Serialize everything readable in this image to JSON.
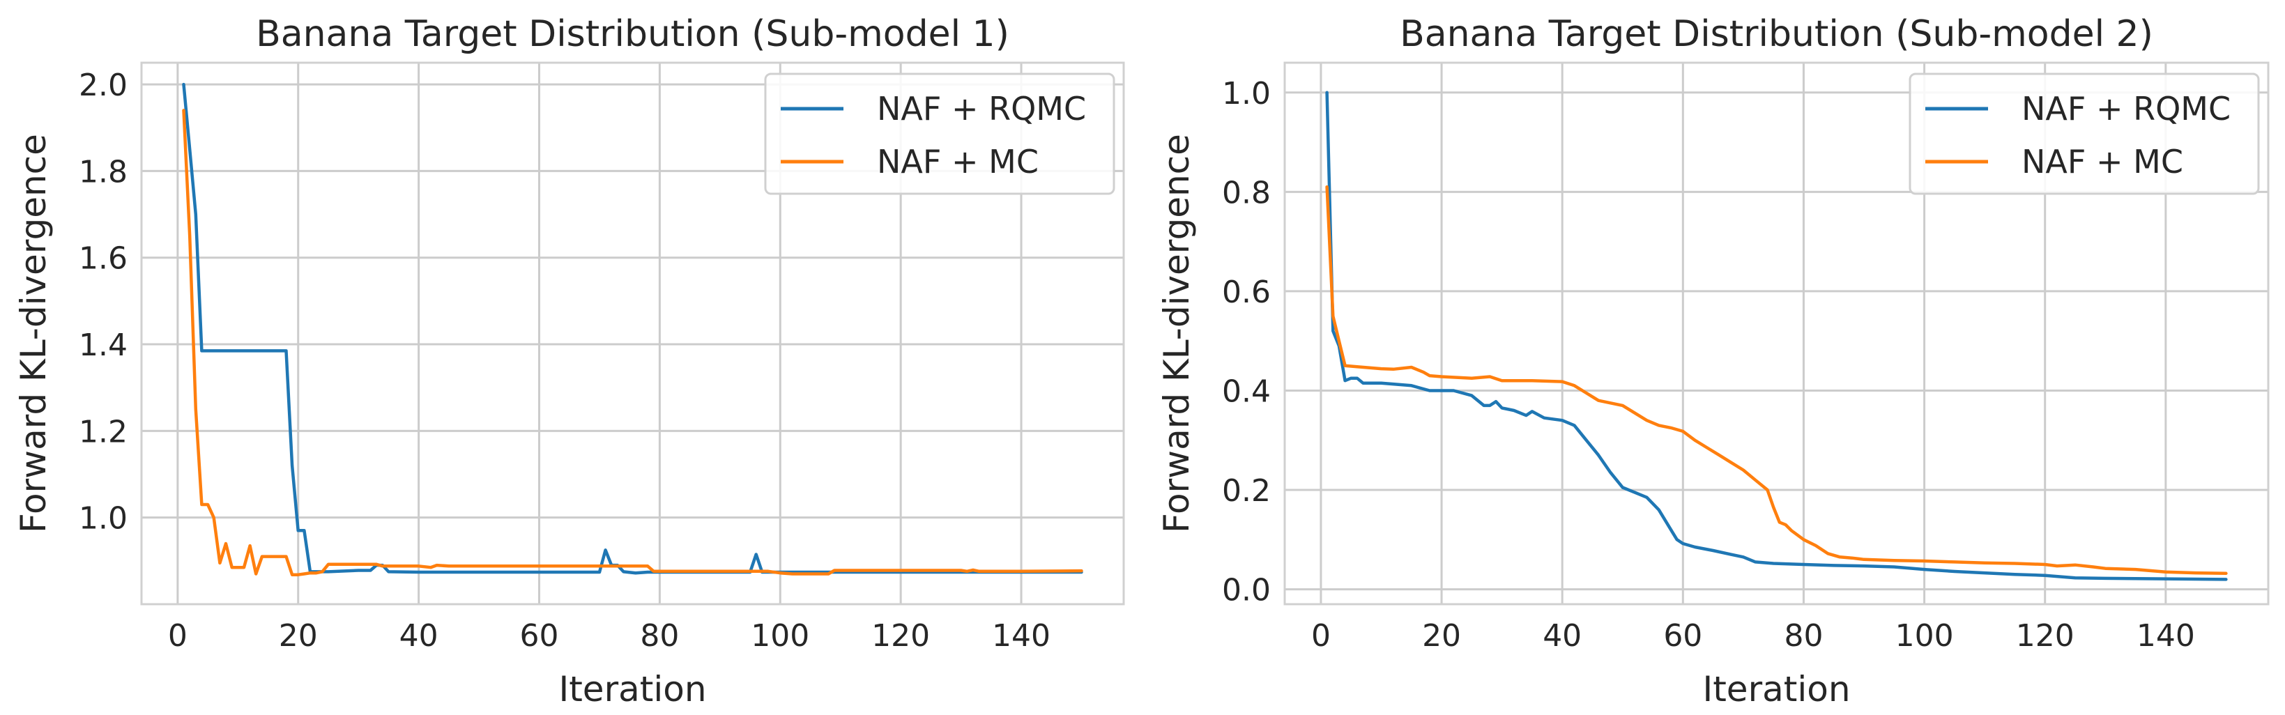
{
  "colors": {
    "rqmc": "#1f77b4",
    "mc": "#ff7f0e"
  },
  "chart_data": [
    {
      "type": "line",
      "title": "Banana Target Distribution (Sub-model 1)",
      "xlabel": "Iteration",
      "ylabel": "Forward KL-divergence",
      "xlim": [
        -6,
        157
      ],
      "ylim": [
        0.8,
        2.05
      ],
      "xticks": [
        0,
        20,
        40,
        60,
        80,
        100,
        120,
        140
      ],
      "yticks": [
        1.0,
        1.2,
        1.4,
        1.6,
        1.8,
        2.0
      ],
      "legend": "top-right",
      "grid": true,
      "series": [
        {
          "name": "NAF + RQMC",
          "color": "#1f77b4",
          "points": [
            [
              1,
              2.0
            ],
            [
              2,
              1.85
            ],
            [
              3,
              1.7
            ],
            [
              4,
              1.385
            ],
            [
              5,
              1.385
            ],
            [
              10,
              1.385
            ],
            [
              15,
              1.385
            ],
            [
              18,
              1.385
            ],
            [
              19,
              1.12
            ],
            [
              20,
              0.97
            ],
            [
              21,
              0.97
            ],
            [
              22,
              0.875
            ],
            [
              25,
              0.875
            ],
            [
              30,
              0.878
            ],
            [
              32,
              0.878
            ],
            [
              33,
              0.89
            ],
            [
              34,
              0.89
            ],
            [
              35,
              0.875
            ],
            [
              40,
              0.874
            ],
            [
              50,
              0.874
            ],
            [
              60,
              0.874
            ],
            [
              70,
              0.874
            ],
            [
              71,
              0.925
            ],
            [
              72,
              0.89
            ],
            [
              73,
              0.89
            ],
            [
              74,
              0.875
            ],
            [
              76,
              0.872
            ],
            [
              78,
              0.874
            ],
            [
              80,
              0.874
            ],
            [
              90,
              0.874
            ],
            [
              95,
              0.874
            ],
            [
              96,
              0.915
            ],
            [
              97,
              0.874
            ],
            [
              100,
              0.874
            ],
            [
              110,
              0.874
            ],
            [
              120,
              0.874
            ],
            [
              130,
              0.874
            ],
            [
              140,
              0.874
            ],
            [
              150,
              0.874
            ]
          ]
        },
        {
          "name": "NAF + MC",
          "color": "#ff7f0e",
          "points": [
            [
              1,
              1.94
            ],
            [
              2,
              1.65
            ],
            [
              3,
              1.25
            ],
            [
              4,
              1.03
            ],
            [
              5,
              1.03
            ],
            [
              6,
              1.0
            ],
            [
              7,
              0.895
            ],
            [
              8,
              0.94
            ],
            [
              9,
              0.885
            ],
            [
              10,
              0.885
            ],
            [
              11,
              0.885
            ],
            [
              12,
              0.935
            ],
            [
              13,
              0.87
            ],
            [
              14,
              0.91
            ],
            [
              15,
              0.91
            ],
            [
              16,
              0.91
            ],
            [
              17,
              0.91
            ],
            [
              18,
              0.91
            ],
            [
              19,
              0.868
            ],
            [
              20,
              0.868
            ],
            [
              21,
              0.87
            ],
            [
              22,
              0.872
            ],
            [
              23,
              0.872
            ],
            [
              24,
              0.875
            ],
            [
              25,
              0.892
            ],
            [
              30,
              0.892
            ],
            [
              33,
              0.892
            ],
            [
              34,
              0.888
            ],
            [
              36,
              0.888
            ],
            [
              38,
              0.888
            ],
            [
              40,
              0.888
            ],
            [
              42,
              0.885
            ],
            [
              43,
              0.89
            ],
            [
              45,
              0.888
            ],
            [
              50,
              0.888
            ],
            [
              60,
              0.888
            ],
            [
              70,
              0.888
            ],
            [
              72,
              0.888
            ],
            [
              75,
              0.888
            ],
            [
              78,
              0.888
            ],
            [
              79,
              0.876
            ],
            [
              80,
              0.876
            ],
            [
              90,
              0.876
            ],
            [
              95,
              0.876
            ],
            [
              98,
              0.876
            ],
            [
              100,
              0.872
            ],
            [
              102,
              0.87
            ],
            [
              105,
              0.87
            ],
            [
              108,
              0.87
            ],
            [
              109,
              0.878
            ],
            [
              110,
              0.878
            ],
            [
              120,
              0.878
            ],
            [
              130,
              0.878
            ],
            [
              131,
              0.876
            ],
            [
              132,
              0.879
            ],
            [
              133,
              0.876
            ],
            [
              140,
              0.876
            ],
            [
              150,
              0.877
            ]
          ]
        }
      ]
    },
    {
      "type": "line",
      "title": "Banana Target Distribution (Sub-model 2)",
      "xlabel": "Iteration",
      "ylabel": "Forward KL-divergence",
      "xlim": [
        -6,
        157
      ],
      "ylim": [
        -0.03,
        1.06
      ],
      "xticks": [
        0,
        20,
        40,
        60,
        80,
        100,
        120,
        140
      ],
      "yticks": [
        0.0,
        0.2,
        0.4,
        0.6,
        0.8,
        1.0
      ],
      "legend": "top-right",
      "grid": true,
      "series": [
        {
          "name": "NAF + RQMC",
          "color": "#1f77b4",
          "points": [
            [
              1,
              1.0
            ],
            [
              2,
              0.52
            ],
            [
              3,
              0.49
            ],
            [
              4,
              0.42
            ],
            [
              5,
              0.425
            ],
            [
              6,
              0.425
            ],
            [
              7,
              0.415
            ],
            [
              10,
              0.415
            ],
            [
              15,
              0.41
            ],
            [
              18,
              0.4
            ],
            [
              20,
              0.4
            ],
            [
              22,
              0.4
            ],
            [
              25,
              0.39
            ],
            [
              27,
              0.37
            ],
            [
              28,
              0.37
            ],
            [
              29,
              0.378
            ],
            [
              30,
              0.365
            ],
            [
              32,
              0.36
            ],
            [
              34,
              0.35
            ],
            [
              35,
              0.358
            ],
            [
              37,
              0.345
            ],
            [
              40,
              0.34
            ],
            [
              42,
              0.33
            ],
            [
              44,
              0.3
            ],
            [
              46,
              0.27
            ],
            [
              48,
              0.235
            ],
            [
              50,
              0.205
            ],
            [
              52,
              0.195
            ],
            [
              54,
              0.185
            ],
            [
              56,
              0.16
            ],
            [
              58,
              0.12
            ],
            [
              59,
              0.1
            ],
            [
              60,
              0.092
            ],
            [
              62,
              0.085
            ],
            [
              65,
              0.078
            ],
            [
              68,
              0.07
            ],
            [
              70,
              0.065
            ],
            [
              72,
              0.055
            ],
            [
              75,
              0.052
            ],
            [
              80,
              0.05
            ],
            [
              85,
              0.048
            ],
            [
              90,
              0.047
            ],
            [
              95,
              0.045
            ],
            [
              100,
              0.04
            ],
            [
              105,
              0.036
            ],
            [
              110,
              0.033
            ],
            [
              115,
              0.03
            ],
            [
              120,
              0.028
            ],
            [
              125,
              0.023
            ],
            [
              130,
              0.022
            ],
            [
              140,
              0.021
            ],
            [
              150,
              0.02
            ]
          ]
        },
        {
          "name": "NAF + MC",
          "color": "#ff7f0e",
          "points": [
            [
              1,
              0.81
            ],
            [
              2,
              0.55
            ],
            [
              3,
              0.5
            ],
            [
              4,
              0.45
            ],
            [
              6,
              0.448
            ],
            [
              10,
              0.444
            ],
            [
              12,
              0.443
            ],
            [
              15,
              0.447
            ],
            [
              17,
              0.437
            ],
            [
              18,
              0.43
            ],
            [
              20,
              0.428
            ],
            [
              25,
              0.425
            ],
            [
              28,
              0.428
            ],
            [
              30,
              0.42
            ],
            [
              35,
              0.42
            ],
            [
              40,
              0.418
            ],
            [
              42,
              0.41
            ],
            [
              44,
              0.395
            ],
            [
              46,
              0.38
            ],
            [
              48,
              0.375
            ],
            [
              50,
              0.37
            ],
            [
              52,
              0.355
            ],
            [
              54,
              0.34
            ],
            [
              56,
              0.33
            ],
            [
              58,
              0.325
            ],
            [
              60,
              0.318
            ],
            [
              62,
              0.3
            ],
            [
              64,
              0.285
            ],
            [
              66,
              0.27
            ],
            [
              68,
              0.255
            ],
            [
              70,
              0.24
            ],
            [
              72,
              0.22
            ],
            [
              74,
              0.2
            ],
            [
              75,
              0.165
            ],
            [
              76,
              0.135
            ],
            [
              77,
              0.13
            ],
            [
              78,
              0.118
            ],
            [
              80,
              0.1
            ],
            [
              82,
              0.088
            ],
            [
              84,
              0.072
            ],
            [
              86,
              0.065
            ],
            [
              88,
              0.063
            ],
            [
              90,
              0.06
            ],
            [
              95,
              0.058
            ],
            [
              100,
              0.057
            ],
            [
              105,
              0.055
            ],
            [
              110,
              0.053
            ],
            [
              115,
              0.052
            ],
            [
              120,
              0.05
            ],
            [
              122,
              0.047
            ],
            [
              125,
              0.049
            ],
            [
              128,
              0.045
            ],
            [
              130,
              0.042
            ],
            [
              135,
              0.04
            ],
            [
              140,
              0.035
            ],
            [
              145,
              0.033
            ],
            [
              150,
              0.032
            ]
          ]
        }
      ]
    }
  ]
}
